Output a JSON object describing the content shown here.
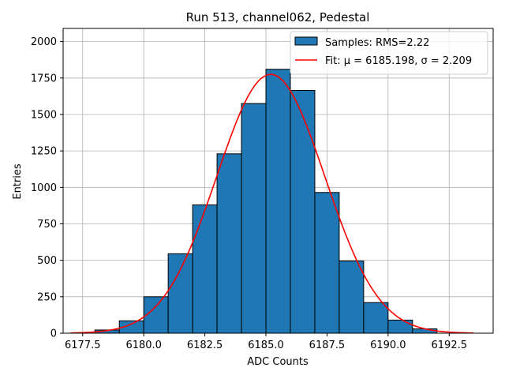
{
  "chart_data": {
    "type": "bar",
    "title": "Run 513, channel062, Pedestal",
    "xlabel": "ADC Counts",
    "ylabel": "Entries",
    "xlim": [
      6176.7,
      6194.3
    ],
    "ylim": [
      0,
      2090
    ],
    "xticks": [
      6177.5,
      6180.0,
      6182.5,
      6185.0,
      6187.5,
      6190.0,
      6192.5
    ],
    "xtick_labels": [
      "6177.5",
      "6180.0",
      "6182.5",
      "6185.0",
      "6187.5",
      "6190.0",
      "6192.5"
    ],
    "yticks": [
      0,
      250,
      500,
      750,
      1000,
      1250,
      1500,
      1750,
      2000
    ],
    "ytick_labels": [
      "0",
      "250",
      "500",
      "750",
      "1000",
      "1250",
      "1500",
      "1750",
      "2000"
    ],
    "grid": true,
    "legend_position": "top-right",
    "histogram": {
      "name": "Samples: RMS=2.22",
      "color": "#1f77b4",
      "bin_edges": [
        6178,
        6179,
        6180,
        6181,
        6182,
        6183,
        6184,
        6185,
        6186,
        6187,
        6188,
        6189,
        6190,
        6191,
        6192
      ],
      "values": [
        22,
        85,
        250,
        545,
        880,
        1230,
        1575,
        1810,
        1665,
        965,
        495,
        210,
        90,
        30
      ]
    },
    "fit": {
      "name": "Fit: μ = 6185.198, σ = 2.209",
      "color": "#ff0000",
      "type": "gaussian",
      "mu": 6185.198,
      "sigma": 2.209,
      "amplitude": 1775,
      "x_range": [
        6177,
        6193.5
      ]
    }
  }
}
